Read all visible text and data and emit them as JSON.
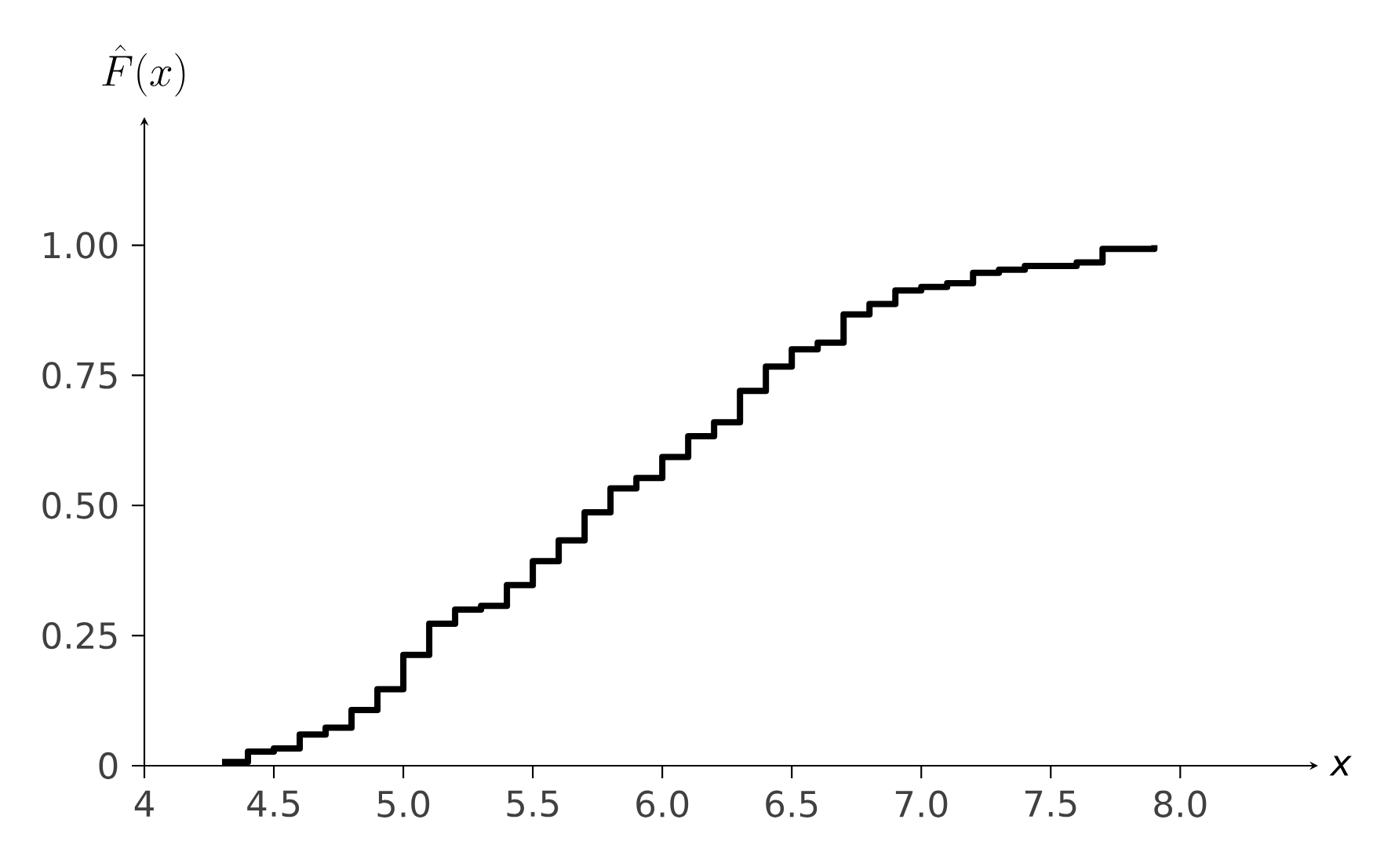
{
  "chart_data": {
    "type": "step",
    "xlabel": "x",
    "ylabel": "\\hat{F}(x)",
    "color": "#000000",
    "x": [
      4.3,
      4.4,
      4.5,
      4.6,
      4.7,
      4.8,
      4.9,
      5.0,
      5.1,
      5.2,
      5.3,
      5.4,
      5.5,
      5.6,
      5.7,
      5.8,
      5.9,
      6.0,
      6.1,
      6.2,
      6.3,
      6.4,
      6.5,
      6.6,
      6.7,
      6.8,
      6.9,
      7.0,
      7.1,
      7.2,
      7.3,
      7.4,
      7.6,
      7.7,
      7.9
    ],
    "values": [
      0.007,
      0.027,
      0.033,
      0.06,
      0.073,
      0.107,
      0.147,
      0.213,
      0.273,
      0.3,
      0.307,
      0.347,
      0.393,
      0.433,
      0.487,
      0.533,
      0.553,
      0.593,
      0.633,
      0.66,
      0.72,
      0.767,
      0.8,
      0.813,
      0.867,
      0.887,
      0.913,
      0.92,
      0.927,
      0.947,
      0.953,
      0.96,
      0.967,
      0.993,
      1.0
    ],
    "xlim": [
      4,
      8.5
    ],
    "ylim": [
      0,
      1.23
    ],
    "xticks": [
      4,
      4.5,
      {
        "value": 5,
        "label": "5.0"
      },
      5.5,
      {
        "value": 6,
        "label": "6.0"
      },
      6.5,
      {
        "value": 7,
        "label": "7.0"
      },
      7.5,
      {
        "value": 8,
        "label": "8.0"
      }
    ],
    "yticks": [
      0,
      0.25,
      {
        "value": 0.5,
        "label": "0.50"
      },
      0.75,
      {
        "value": 1,
        "label": "1.00"
      }
    ]
  }
}
